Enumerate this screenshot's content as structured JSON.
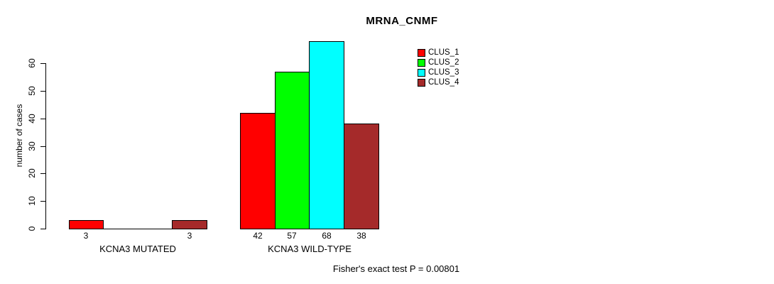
{
  "title": "MRNA_CNMF",
  "chart_data": {
    "type": "bar",
    "title": "MRNA_CNMF",
    "xlabel": "",
    "ylabel": "number of cases",
    "ylim": [
      0,
      68
    ],
    "yticks": [
      0,
      10,
      20,
      30,
      40,
      50,
      60
    ],
    "grid": false,
    "legend_position": "top-right",
    "categories": [
      "KCNA3 MUTATED",
      "KCNA3 WILD-TYPE"
    ],
    "series": [
      {
        "name": "CLUS_1",
        "color": "#ff0000",
        "values": [
          3,
          42
        ]
      },
      {
        "name": "CLUS_2",
        "color": "#00ff00",
        "values": [
          0,
          57
        ]
      },
      {
        "name": "CLUS_3",
        "color": "#00ffff",
        "values": [
          0,
          68
        ]
      },
      {
        "name": "CLUS_4",
        "color": "#a52a2a",
        "values": [
          3,
          38
        ]
      }
    ],
    "bar_value_labels": [
      [
        "3",
        "",
        "",
        "3"
      ],
      [
        "42",
        "57",
        "68",
        "38"
      ]
    ],
    "annotation": "Fisher's exact test P = 0.00801"
  }
}
